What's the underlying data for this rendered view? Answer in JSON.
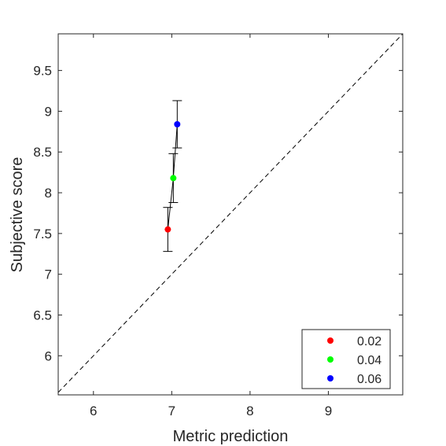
{
  "chart_data": {
    "type": "scatter",
    "xlabel": "Metric prediction",
    "ylabel": "Subjective score",
    "xlim": [
      5.55,
      9.95
    ],
    "ylim": [
      5.52,
      9.95
    ],
    "xticks": [
      6,
      7,
      8,
      9
    ],
    "yticks": [
      6,
      6.5,
      7,
      7.5,
      8,
      8.5,
      9,
      9.5
    ],
    "xtick_labels": [
      "6",
      "7",
      "8",
      "9"
    ],
    "ytick_labels": [
      "6",
      "6.5",
      "7",
      "7.5",
      "8",
      "8.5",
      "9",
      "9.5"
    ],
    "grid": false,
    "legend_position": "bottom-right",
    "reference_line": "y = x (dashed)",
    "series": [
      {
        "name": "0.02",
        "color": "#ff0000",
        "x": 6.95,
        "y": 7.55,
        "err": 0.27
      },
      {
        "name": "0.04",
        "color": "#00ff00",
        "x": 7.02,
        "y": 8.18,
        "err": 0.3
      },
      {
        "name": "0.06",
        "color": "#0000ff",
        "x": 7.07,
        "y": 8.84,
        "err": 0.29
      }
    ]
  }
}
